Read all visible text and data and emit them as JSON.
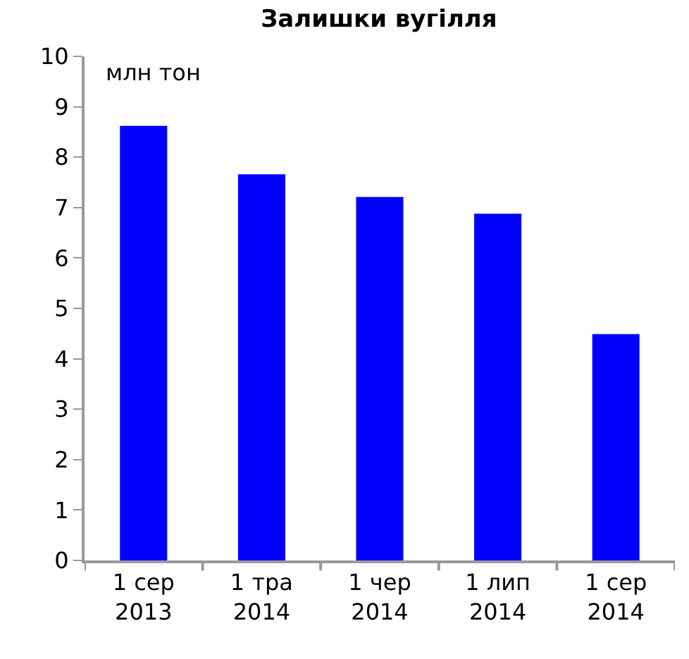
{
  "chart_data": {
    "type": "bar",
    "title": "Залишки вугілля",
    "ylabel": "млн тон",
    "categories": [
      "1 сер\n2013",
      "1 тра\n2014",
      "1 чер\n2014",
      "1 лип\n2014",
      "1 сер\n2014"
    ],
    "values": [
      8.62,
      7.66,
      7.21,
      6.88,
      4.49
    ],
    "color": "#0000ff",
    "ylim": [
      0,
      10
    ],
    "yticks": [
      0,
      1,
      2,
      3,
      4,
      5,
      6,
      7,
      8,
      9,
      10
    ]
  }
}
